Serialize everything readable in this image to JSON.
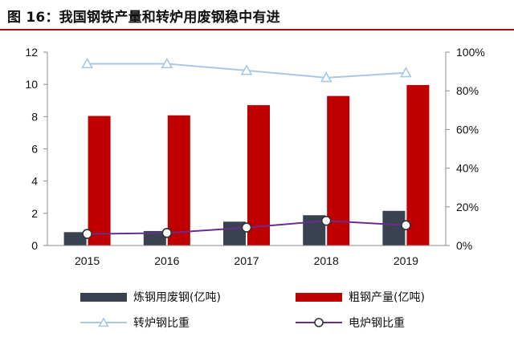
{
  "figure": {
    "title": "图 16：我国钢铁产量和转炉用废钢稳中有进"
  },
  "colors": {
    "title_rule": "#b40c0c",
    "scrap_bar": "#3a4252",
    "crude_bar": "#c00000",
    "converter_line": "#a9c7e6",
    "eaf_line": "#6a2d8f"
  },
  "chart_data": {
    "type": "bar",
    "categories": [
      "2015",
      "2016",
      "2017",
      "2018",
      "2019"
    ],
    "series": [
      {
        "name": "炼钢用废钢(亿吨)",
        "type": "bar",
        "axis": "left",
        "values": [
          0.83,
          0.9,
          1.48,
          1.88,
          2.15
        ]
      },
      {
        "name": "粗钢产量(亿吨)",
        "type": "bar",
        "axis": "left",
        "values": [
          8.04,
          8.08,
          8.71,
          9.28,
          9.96
        ]
      },
      {
        "name": "转炉钢比重",
        "type": "line",
        "axis": "right",
        "marker": "triangle",
        "values": [
          0.94,
          0.94,
          0.905,
          0.868,
          0.893
        ]
      },
      {
        "name": "电炉钢比重",
        "type": "line",
        "axis": "right",
        "marker": "circle",
        "values": [
          0.06,
          0.065,
          0.093,
          0.128,
          0.105
        ]
      }
    ],
    "y_left": {
      "min": 0,
      "max": 12,
      "ticks": [
        "0",
        "2",
        "4",
        "6",
        "8",
        "10",
        "12"
      ]
    },
    "y_right": {
      "min": 0,
      "max": 1,
      "ticks": [
        "0%",
        "20%",
        "40%",
        "60%",
        "80%",
        "100%"
      ]
    },
    "grid": false,
    "legend_position": "bottom"
  }
}
